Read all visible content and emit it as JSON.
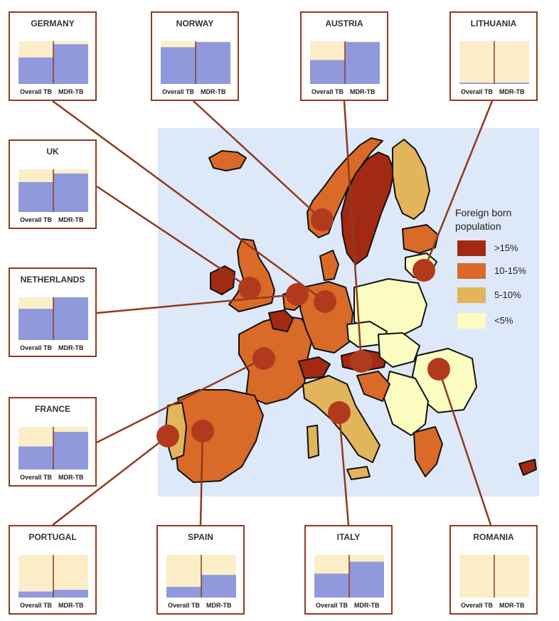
{
  "colors": {
    "gt15": "#a32a12",
    "c10_15": "#d96a28",
    "c5_10": "#e3b55a",
    "lt5": "#fbfcc0",
    "sea": "#dde8f8",
    "tb_fill": "#8f99dc",
    "bar_bg": "#fbeec9",
    "frame": "#8f3a1f",
    "marker": "#b23a1c"
  },
  "legend": {
    "title_line1": "Foreign born",
    "title_line2": "population",
    "items": [
      {
        "label": ">15%",
        "color": "#a32a12"
      },
      {
        "label": "10-15%",
        "color": "#d96a28"
      },
      {
        "label": "5-10%",
        "color": "#e3b55a"
      },
      {
        "label": "<5%",
        "color": "#fbfcc0"
      }
    ]
  },
  "bar_labels": {
    "overall": "Overall TB",
    "mdr": "MDR-TB"
  },
  "chart_data": {
    "type": "bar",
    "categories": [
      "Overall TB",
      "MDR-TB"
    ],
    "ylim": [
      0,
      1
    ],
    "countries": [
      {
        "name": "GERMANY",
        "overall": 0.62,
        "mdr": 0.93
      },
      {
        "name": "NORWAY",
        "overall": 0.86,
        "mdr": 0.98
      },
      {
        "name": "AUSTRIA",
        "overall": 0.56,
        "mdr": 0.98
      },
      {
        "name": "LITHUANIA",
        "overall": 0.03,
        "mdr": 0.03
      },
      {
        "name": "UK",
        "overall": 0.7,
        "mdr": 0.9
      },
      {
        "name": "NETHERLANDS",
        "overall": 0.73,
        "mdr": 1.0
      },
      {
        "name": "FRANCE",
        "overall": 0.54,
        "mdr": 0.88
      },
      {
        "name": "PORTUGAL",
        "overall": 0.14,
        "mdr": 0.18
      },
      {
        "name": "SPAIN",
        "overall": 0.25,
        "mdr": 0.53
      },
      {
        "name": "ITALY",
        "overall": 0.56,
        "mdr": 0.84
      },
      {
        "name": "ROMANIA",
        "overall": 0.0,
        "mdr": 0.0
      }
    ]
  }
}
